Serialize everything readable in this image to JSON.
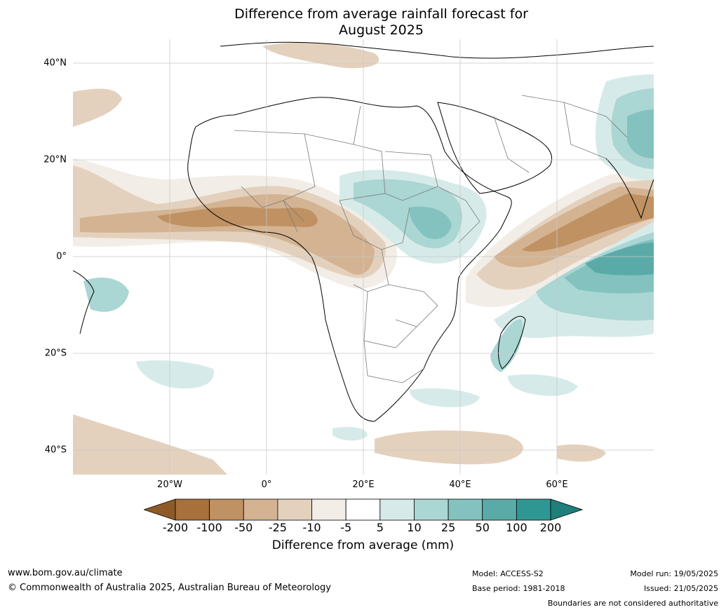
{
  "title": {
    "line1": "Difference from average rainfall forecast for",
    "line2": "August 2025"
  },
  "map": {
    "lat_labels": [
      "40°N",
      "20°N",
      "0°",
      "20°S",
      "40°S"
    ],
    "lon_labels": [
      "20°W",
      "0°",
      "20°E",
      "40°E",
      "60°E"
    ],
    "land_color": "#ffffff",
    "coast_color": "#000000",
    "border_color": "#7a7a7a",
    "grid_color": "#c8c8c8"
  },
  "colorbar": {
    "levels": [
      "-200",
      "-100",
      "-50",
      "-25",
      "-10",
      "-5",
      "5",
      "10",
      "25",
      "50",
      "100",
      "200"
    ],
    "colors": [
      "#a8703a",
      "#bf9163",
      "#d4b392",
      "#e4d1bd",
      "#f2ede6",
      "#ffffff",
      "#d6ebe9",
      "#aad6d3",
      "#83c2bf",
      "#5aaba8",
      "#2f9793"
    ],
    "under_color": "#8e5a28",
    "over_color": "#1e7f7b",
    "label": "Difference from average (mm)"
  },
  "footer": {
    "website": "www.bom.gov.au/climate",
    "copyright": "© Commonwealth of Australia 2025, Australian Bureau of Meteorology",
    "model": "Model: ACCESS-S2",
    "base_period": "Base period: 1981-2018",
    "model_run": "Model run: 19/05/2025",
    "issued": "Issued: 21/05/2025",
    "disclaimer": "Boundaries are not considered authoritative"
  }
}
